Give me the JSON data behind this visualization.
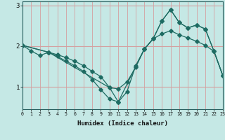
{
  "xlabel": "Humidex (Indice chaleur)",
  "bg_color": "#c5e8e5",
  "line_color": "#1e6b62",
  "grid_color": "#d4a0a0",
  "xlim": [
    0,
    23
  ],
  "ylim": [
    0.45,
    3.1
  ],
  "yticks": [
    1,
    2,
    3
  ],
  "xticks": [
    0,
    1,
    2,
    3,
    4,
    5,
    6,
    7,
    8,
    9,
    10,
    11,
    12,
    13,
    14,
    15,
    16,
    17,
    18,
    19,
    20,
    21,
    22,
    23
  ],
  "line1_x": [
    0,
    1,
    2,
    3,
    4,
    5,
    6,
    7,
    8,
    9,
    10,
    11,
    12,
    13,
    14,
    15,
    16,
    17,
    18,
    19,
    20,
    21,
    22,
    23
  ],
  "line1_y": [
    2.02,
    1.88,
    1.77,
    1.85,
    1.79,
    1.72,
    1.63,
    1.52,
    1.38,
    1.25,
    0.98,
    0.95,
    1.12,
    1.48,
    1.93,
    2.18,
    2.3,
    2.38,
    2.28,
    2.2,
    2.12,
    2.02,
    1.87,
    1.28
  ],
  "line2_x": [
    0,
    3,
    10,
    11,
    14,
    15,
    16,
    17,
    18,
    19,
    20,
    21,
    22,
    23
  ],
  "line2_y": [
    2.02,
    1.85,
    0.98,
    0.63,
    1.93,
    2.18,
    2.62,
    2.9,
    2.58,
    2.45,
    2.52,
    2.42,
    1.87,
    1.28
  ],
  "line3_x": [
    0,
    3,
    4,
    5,
    6,
    7,
    8,
    9,
    10,
    11,
    12,
    13,
    14,
    15,
    16,
    17,
    18,
    19,
    20,
    21,
    22,
    23
  ],
  "line3_y": [
    2.02,
    1.85,
    1.75,
    1.63,
    1.52,
    1.38,
    1.18,
    0.93,
    0.7,
    0.63,
    0.88,
    1.52,
    1.93,
    2.18,
    2.62,
    2.9,
    2.58,
    2.45,
    2.52,
    2.42,
    1.87,
    1.28
  ]
}
